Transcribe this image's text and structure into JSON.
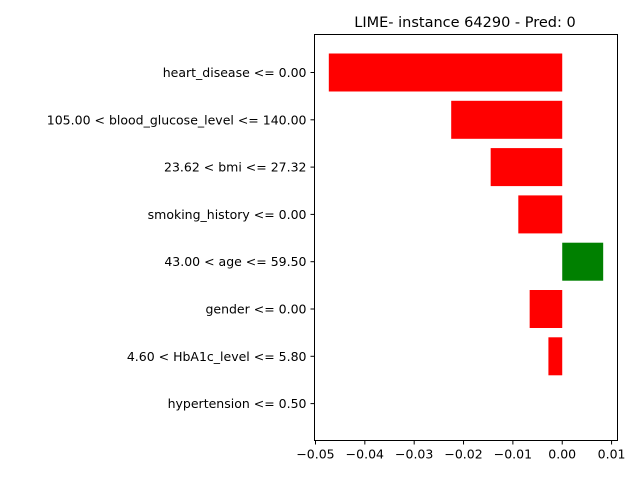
{
  "chart_data": {
    "type": "bar",
    "orientation": "horizontal",
    "title": "LIME- instance 64290 - Pred: 0",
    "xlabel": "",
    "ylabel": "",
    "categories": [
      "heart_disease <= 0.00",
      "105.00 < blood_glucose_level <= 140.00",
      "23.62 < bmi <= 27.32",
      "smoking_history <= 0.00",
      "43.00 < age <= 59.50",
      "gender <= 0.00",
      "4.60 < HbA1c_level <= 5.80",
      "hypertension <= 0.50"
    ],
    "values": [
      -0.0473,
      -0.0225,
      -0.0145,
      -0.0089,
      0.0083,
      -0.0066,
      -0.0028,
      0.0
    ],
    "xlim": [
      -0.0502,
      0.0112
    ],
    "xticks": [
      -0.05,
      -0.04,
      -0.03,
      -0.02,
      -0.01,
      0.0,
      0.01
    ],
    "xtick_labels": [
      "−0.05",
      "−0.04",
      "−0.03",
      "−0.02",
      "−0.01",
      "0.00",
      "0.01"
    ],
    "grid": false,
    "colors": {
      "positive": "#008000",
      "negative": "#ff0000"
    }
  }
}
